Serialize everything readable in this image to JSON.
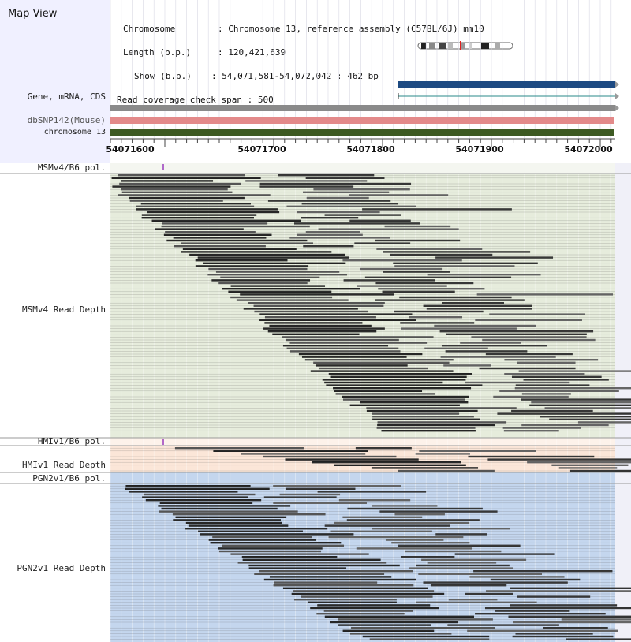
{
  "header": {
    "title": "Map View",
    "chromosome_key": "Chromosome",
    "chromosome_value": "Chromosome 13, reference assembly (C57BL/6J) mm10",
    "length_key": "Length (b.p.)",
    "length_value": "120,421,639",
    "show_key": "Show (b.p.)",
    "show_value": "54,071,581-54,072,042 : 462 bp",
    "coverage_key": "Read coverage check span",
    "coverage_value": "500"
  },
  "tracks": {
    "gene": "Gene, mRNA, CDS",
    "dbsnp": "dbSNP142(Mouse)",
    "chromosome": "chromosome 13",
    "msm_pol": "MSMv4/B6 pol.",
    "msm_depth": "MSMv4 Read Depth",
    "hmi_pol": "HMIv1/B6 pol.",
    "hmi_depth": "HMIv1 Read Depth",
    "pgn_pol": "PGN2v1/B6 pol.",
    "pgn_depth": "PGN2v1 Read Depth"
  },
  "ruler": {
    "ticks": [
      "54071600",
      "54071700",
      "54071800",
      "54071900",
      "54072000"
    ]
  },
  "colors": {
    "panel_blue": "#f0f0ff",
    "gene_bar": "#1d4a82",
    "gene_line": "#2a8a8a",
    "gray_bar": "#8a8a8a",
    "dbsnp_bar": "#e38a8a",
    "chrom_bar": "#3d5a22",
    "msm_bg": "#e6ecdc",
    "hmi_bg": "#fbe6d8",
    "pgn_bg": "#c4d6ee",
    "marker": "#9a3bbd"
  }
}
